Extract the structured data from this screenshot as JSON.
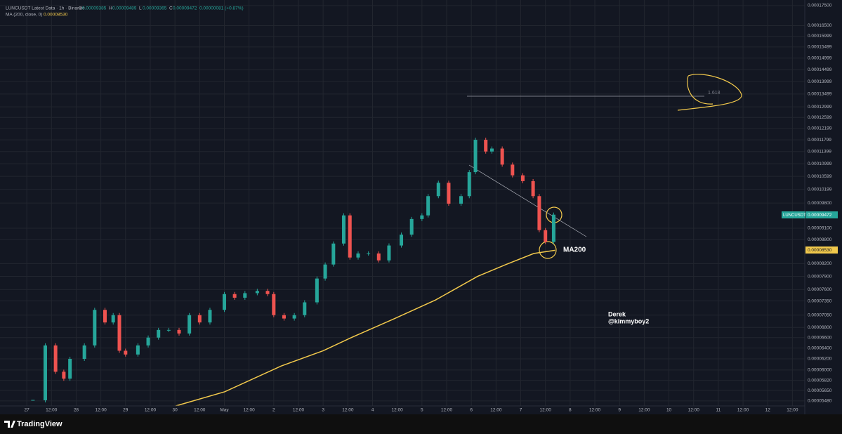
{
  "chart_data": {
    "type": "candlestick",
    "title": "LUNCUSDT Latest Data · 1h · Binance",
    "header": {
      "labels": [
        "O",
        "H",
        "L",
        "C"
      ],
      "values": [
        "0.00009385",
        "0.00009489",
        "0.00009365",
        "0.00009472"
      ],
      "change": "0.00000081 (+0.87%)",
      "ma_value": "0.00008530"
    },
    "log_scale": true,
    "grid": true,
    "xlim": [
      -13,
      378
    ],
    "ylim": [
      5.4e-05,
      0.0001779
    ],
    "xticks": [
      {
        "value": 0,
        "label": "27"
      },
      {
        "value": 12,
        "label": "12:00"
      },
      {
        "value": 24,
        "label": "28"
      },
      {
        "value": 36,
        "label": "12:00"
      },
      {
        "value": 48,
        "label": "29"
      },
      {
        "value": 60,
        "label": "12:00"
      },
      {
        "value": 72,
        "label": "30"
      },
      {
        "value": 84,
        "label": "12:00"
      },
      {
        "value": 96,
        "label": "May"
      },
      {
        "value": 108,
        "label": "12:00"
      },
      {
        "value": 120,
        "label": "2"
      },
      {
        "value": 132,
        "label": "12:00"
      },
      {
        "value": 144,
        "label": "3"
      },
      {
        "value": 156,
        "label": "12:00"
      },
      {
        "value": 168,
        "label": "4"
      },
      {
        "value": 180,
        "label": "12:00"
      },
      {
        "value": 192,
        "label": "5"
      },
      {
        "value": 204,
        "label": "12:00"
      },
      {
        "value": 216,
        "label": "6"
      },
      {
        "value": 228,
        "label": "12:00"
      },
      {
        "value": 240,
        "label": "7"
      },
      {
        "value": 252,
        "label": "12:00"
      },
      {
        "value": 264,
        "label": "8"
      },
      {
        "value": 276,
        "label": "12:00"
      },
      {
        "value": 288,
        "label": "9"
      },
      {
        "value": 300,
        "label": "12:00"
      },
      {
        "value": 312,
        "label": "10"
      },
      {
        "value": 324,
        "label": "12:00"
      },
      {
        "value": 336,
        "label": "11"
      },
      {
        "value": 348,
        "label": "12:00"
      },
      {
        "value": 360,
        "label": "12"
      },
      {
        "value": 372,
        "label": "12:00"
      }
    ],
    "yticks": [
      {
        "value": 0.000175,
        "label": "0.00017500"
      },
      {
        "value": 0.000165,
        "label": "0.00016500"
      },
      {
        "value": 0.00015999,
        "label": "0.00015999"
      },
      {
        "value": 0.00015499,
        "label": "0.00015499"
      },
      {
        "value": 0.00014999,
        "label": "0.00014999"
      },
      {
        "value": 0.00014499,
        "label": "0.00014499"
      },
      {
        "value": 0.00013999,
        "label": "0.00013999"
      },
      {
        "value": 0.00013499,
        "label": "0.00013499"
      },
      {
        "value": 0.00012999,
        "label": "0.00012999"
      },
      {
        "value": 0.00012599,
        "label": "0.00012599"
      },
      {
        "value": 0.00012199,
        "label": "0.00012199"
      },
      {
        "value": 0.00011799,
        "label": "0.00011799"
      },
      {
        "value": 0.00011399,
        "label": "0.00011399"
      },
      {
        "value": 0.00010999,
        "label": "0.00010999"
      },
      {
        "value": 0.00010599,
        "label": "0.00010599"
      },
      {
        "value": 0.00010199,
        "label": "0.00010199"
      },
      {
        "value": 9.8e-05,
        "label": "0.00009800"
      },
      {
        "value": 9.1e-05,
        "label": "0.00009100"
      },
      {
        "value": 8.8e-05,
        "label": "0.00008800"
      },
      {
        "value": 8.2e-05,
        "label": "0.00008200"
      },
      {
        "value": 7.9e-05,
        "label": "0.00007900"
      },
      {
        "value": 7.6e-05,
        "label": "0.00007600"
      },
      {
        "value": 7.35e-05,
        "label": "0.00007350"
      },
      {
        "value": 7.05e-05,
        "label": "0.00007050"
      },
      {
        "value": 6.8e-05,
        "label": "0.00006800"
      },
      {
        "value": 6.6e-05,
        "label": "0.00006600"
      },
      {
        "value": 6.4e-05,
        "label": "0.00006400"
      },
      {
        "value": 6.2e-05,
        "label": "0.00006200"
      },
      {
        "value": 6e-05,
        "label": "0.00006000"
      },
      {
        "value": 5.82e-05,
        "label": "0.00005820"
      },
      {
        "value": 5.65e-05,
        "label": "0.00005650"
      },
      {
        "value": 5.48e-05,
        "label": "0.00005480"
      }
    ],
    "series": [
      {
        "name": "LUNCUSDT",
        "up_color": "#26a69a",
        "down_color": "#ef5350",
        "last_label": "0.00009472",
        "x": [
          3,
          9,
          14,
          18,
          21,
          28,
          33,
          38,
          42,
          45,
          48,
          54,
          59,
          64,
          69,
          74,
          79,
          84,
          89,
          96,
          101,
          106,
          112,
          117,
          120,
          125,
          130,
          135,
          141,
          145,
          149,
          154,
          157,
          161,
          166,
          171,
          176,
          182,
          187,
          192,
          195,
          200,
          205,
          211,
          215,
          218,
          223,
          226,
          231,
          236,
          241,
          246,
          249,
          252,
          256
        ],
        "values": [
          5.49e-05,
          6.45e-05,
          5.97e-05,
          5.85e-05,
          6.2e-05,
          6.45e-05,
          7.16e-05,
          6.9e-05,
          7.05e-05,
          6.35e-05,
          6.28e-05,
          6.45e-05,
          6.6e-05,
          6.75e-05,
          6.75e-05,
          6.68e-05,
          7.05e-05,
          6.9e-05,
          7.16e-05,
          7.5e-05,
          7.42e-05,
          7.52e-05,
          7.57e-05,
          7.5e-05,
          7.05e-05,
          6.98e-05,
          7.05e-05,
          7.32e-05,
          7.85e-05,
          8.18e-05,
          8.7e-05,
          9.45e-05,
          8.35e-05,
          8.45e-05,
          8.45e-05,
          8.28e-05,
          8.65e-05,
          8.93e-05,
          9.35e-05,
          9.45e-05,
          0.0001,
          0.000104,
          9.78e-05,
          0.0001,
          0.0001073,
          0.000118,
          0.000114,
          0.000115,
          0.0001097,
          0.0001063,
          0.0001045,
          0.0001,
          9.05e-05,
          8.74e-05,
          9.47e-05
        ]
      },
      {
        "name": "MA (200, close, 0)",
        "color": "#f2c94c",
        "last_label": "0.00008530",
        "x": [
          72.4,
          96.2,
          123.5,
          144,
          157.7,
          178.2,
          198.6,
          219,
          232.8,
          246.4,
          256.7
        ],
        "values": [
          5.4e-05,
          5.63e-05,
          6.07e-05,
          6.35e-05,
          6.6e-05,
          6.97e-05,
          7.37e-05,
          7.9e-05,
          8.18e-05,
          8.45e-05,
          8.53e-05
        ]
      }
    ],
    "annotations": {
      "fib": "1.618",
      "ma": "MA200",
      "author": "Derek",
      "handle": "@kimmyboy2",
      "brand": "TradingView"
    }
  }
}
